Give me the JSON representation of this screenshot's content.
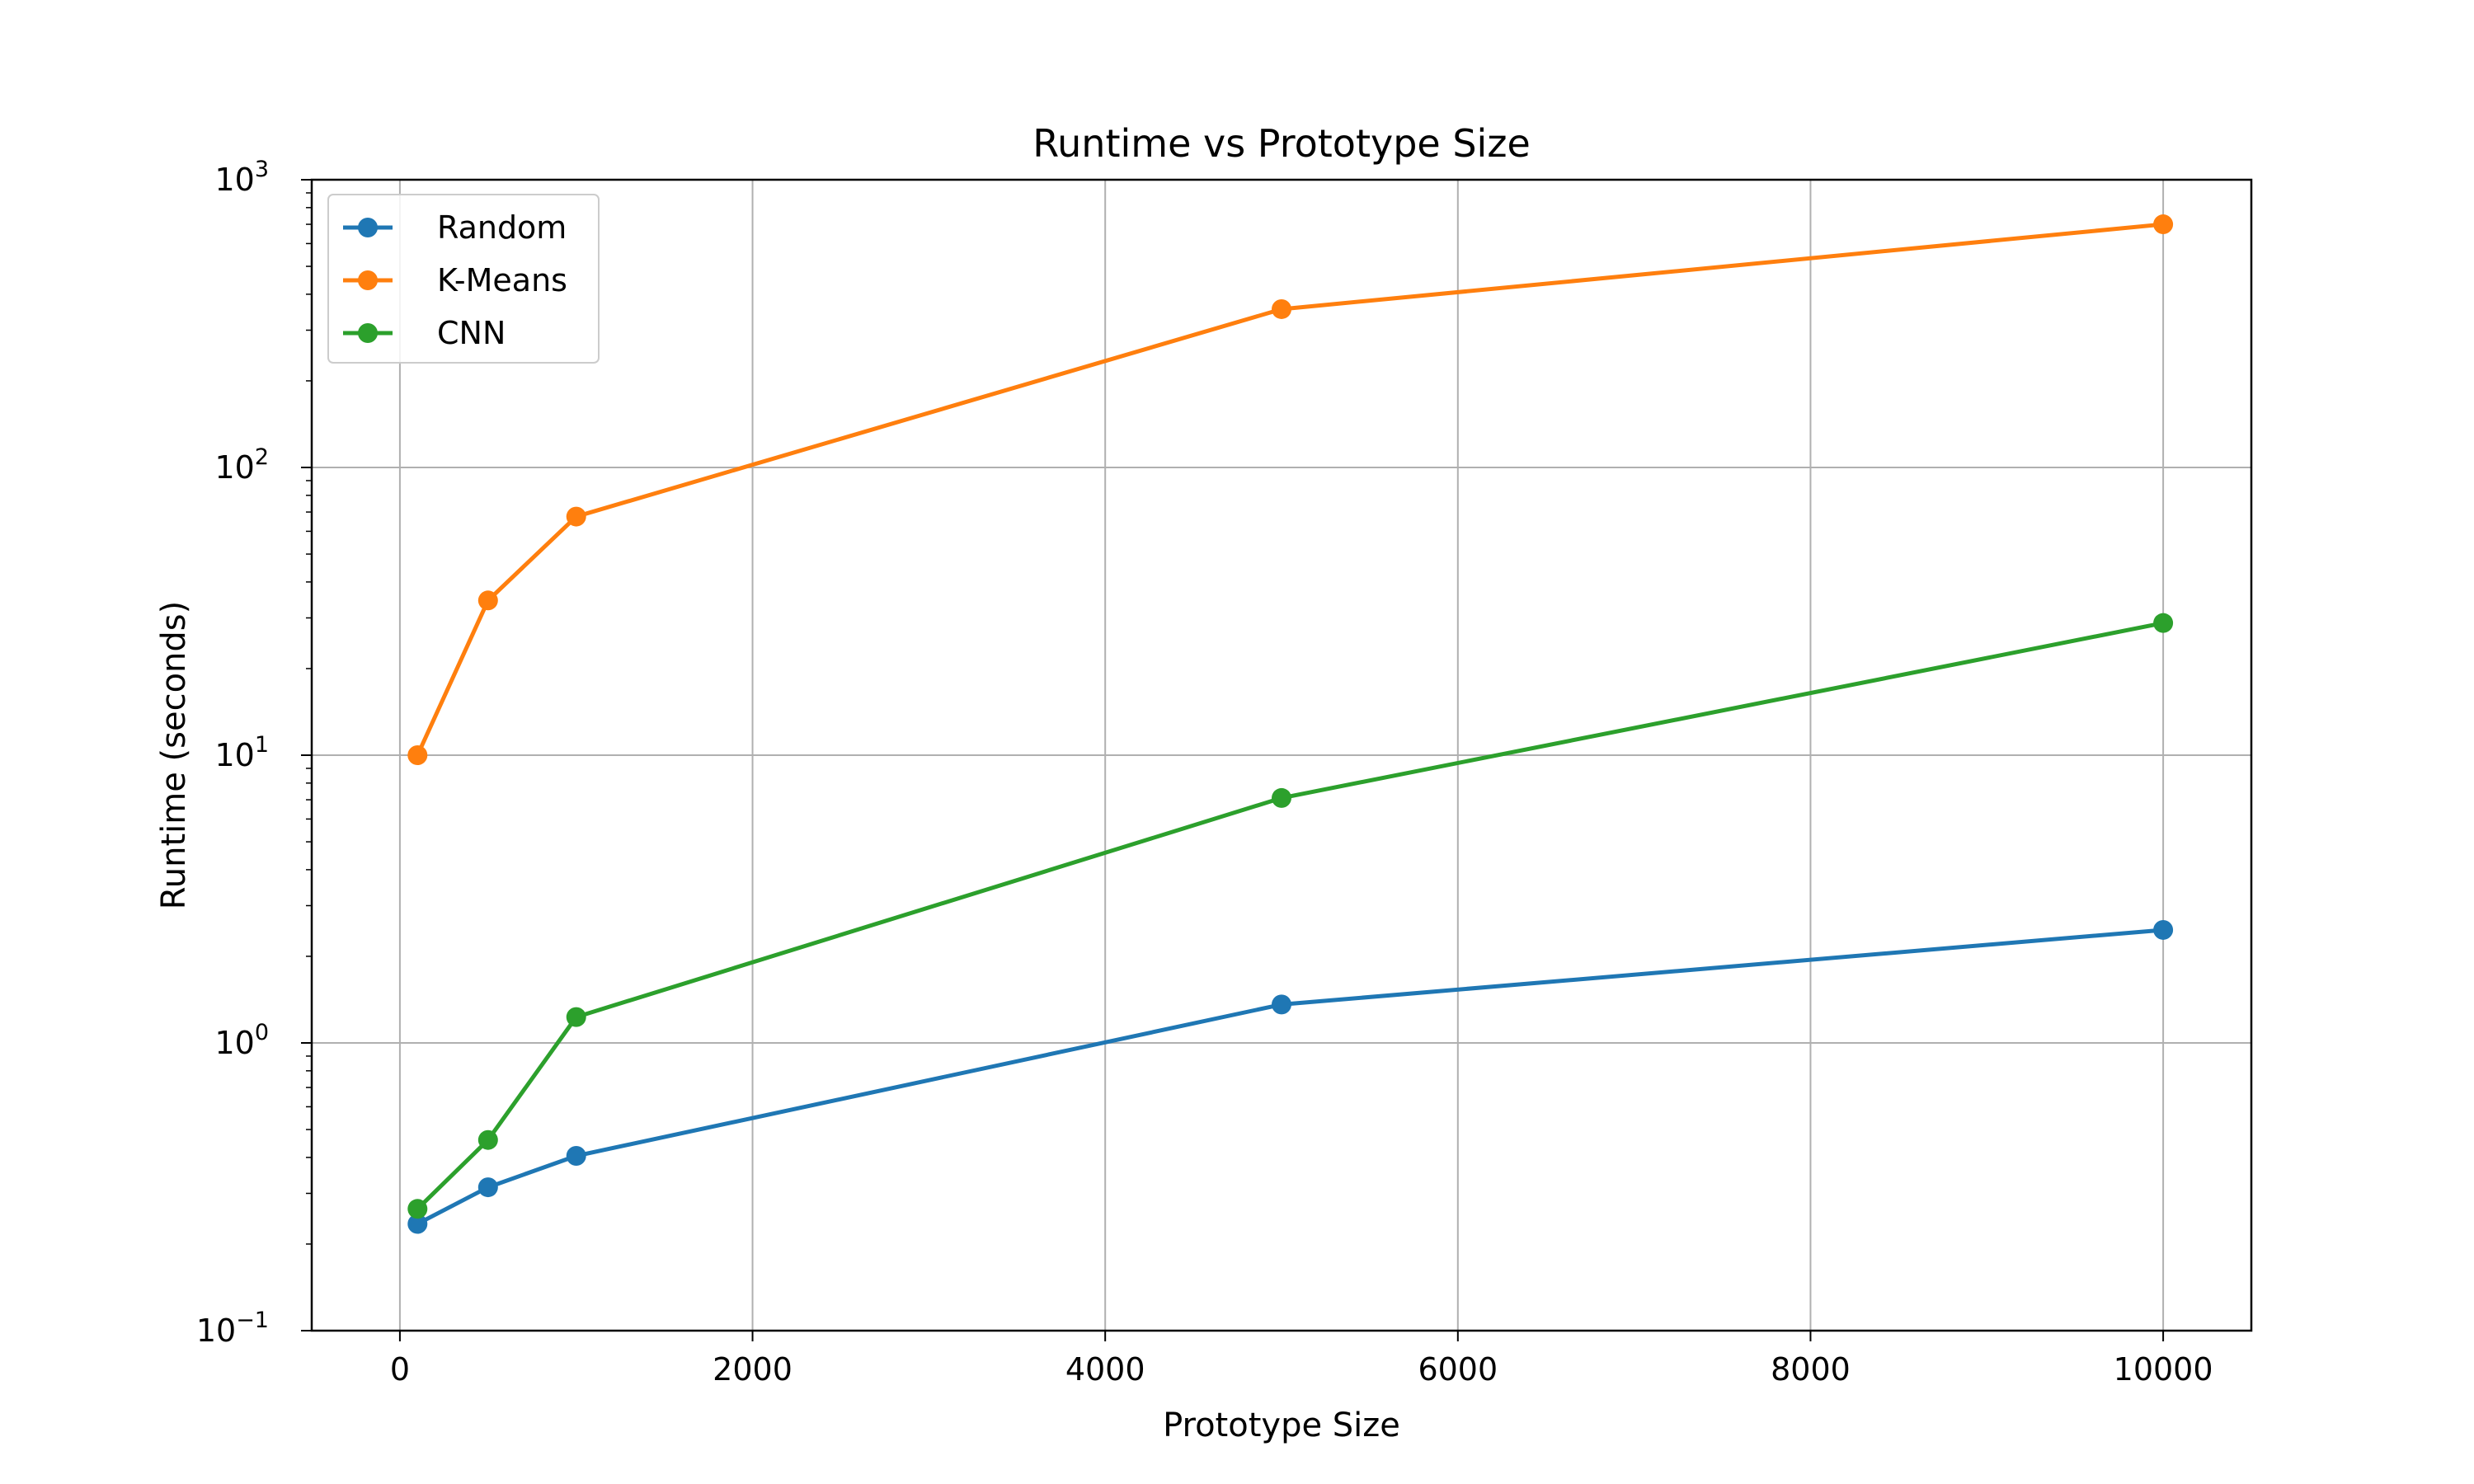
{
  "chart_data": {
    "type": "line",
    "title": "Runtime vs Prototype Size",
    "xlabel": "Prototype Size",
    "ylabel": "Runtime (seconds)",
    "x_scale": "linear",
    "y_scale": "log",
    "xlim": [
      -500,
      10500
    ],
    "ylim": [
      0.1,
      1000
    ],
    "x_ticks": [
      {
        "value": 0,
        "label": "0"
      },
      {
        "value": 2000,
        "label": "2000"
      },
      {
        "value": 4000,
        "label": "4000"
      },
      {
        "value": 6000,
        "label": "6000"
      },
      {
        "value": 8000,
        "label": "8000"
      },
      {
        "value": 10000,
        "label": "10000"
      }
    ],
    "y_ticks": [
      {
        "value": 0.1,
        "base": "10",
        "exp": "−1"
      },
      {
        "value": 1,
        "base": "10",
        "exp": "0"
      },
      {
        "value": 10,
        "base": "10",
        "exp": "1"
      },
      {
        "value": 100,
        "base": "10",
        "exp": "2"
      },
      {
        "value": 1000,
        "base": "10",
        "exp": "3"
      }
    ],
    "grid": true,
    "legend_position": "top-left",
    "x": [
      100,
      500,
      1000,
      5000,
      10000
    ],
    "series": [
      {
        "name": "Random",
        "color": "#1f77b4",
        "values": [
          0.235,
          0.315,
          0.405,
          1.36,
          2.47
        ]
      },
      {
        "name": "K-Means",
        "color": "#ff7f0e",
        "values": [
          10.0,
          34.5,
          67.5,
          355,
          700
        ]
      },
      {
        "name": "CNN",
        "color": "#2ca02c",
        "values": [
          0.265,
          0.46,
          1.23,
          7.1,
          28.8
        ]
      }
    ]
  }
}
